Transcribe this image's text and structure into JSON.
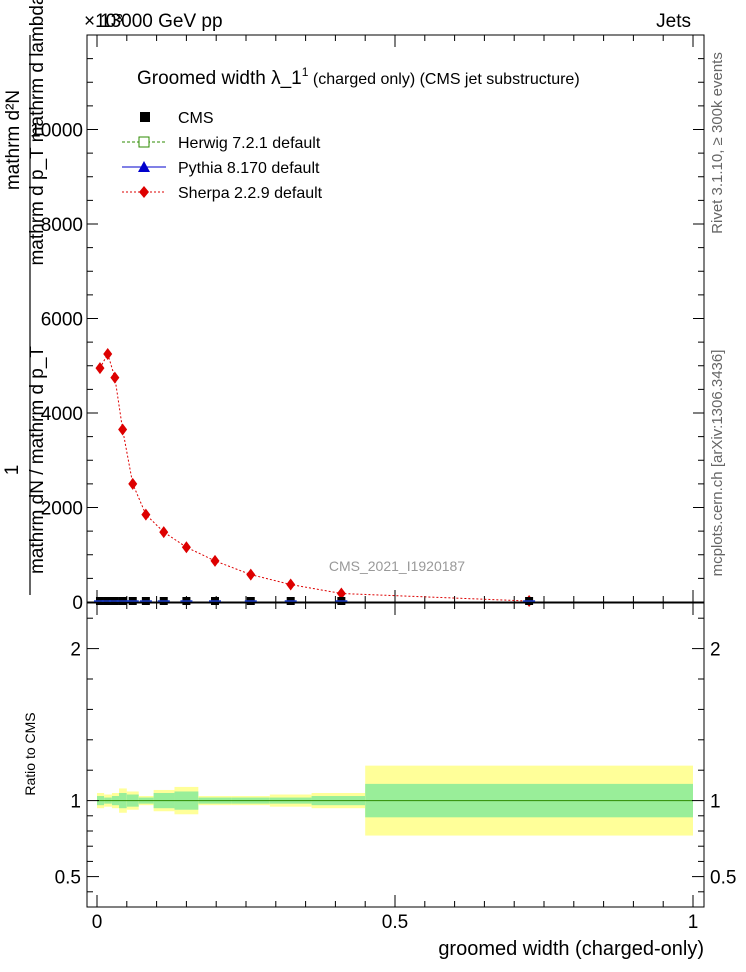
{
  "header": {
    "left": "13000 GeV pp",
    "right": "Jets",
    "exponent": "×10³"
  },
  "title": {
    "main": "Groomed width  λ_1",
    "sup": "1",
    "suffix": " (charged only) (CMS jet substructure)"
  },
  "watermark": "CMS_2021_I1920187",
  "side_labels": {
    "rivet": "Rivet 3.1.10, ≥ 300k events",
    "mcplots": "mcplots.cern.ch [arXiv:1306.3436]"
  },
  "y_label": {
    "one": "1",
    "numerator": "mathrm d²N",
    "denominator_top": "mathrm d p_T mathrm d lambda",
    "denominator_bottom": "mathrm dN / mathrm d p_T"
  },
  "ratio_label": "Ratio to CMS",
  "x_label": "groomed width (charged-only)",
  "legend": [
    {
      "label": "CMS",
      "color": "#000000",
      "marker": "square"
    },
    {
      "label": "Herwig 7.2.1 default",
      "color": "#2e8b00",
      "marker": "open-square"
    },
    {
      "label": "Pythia 8.170 default",
      "color": "#0000cc",
      "marker": "triangle"
    },
    {
      "label": "Sherpa 2.2.9 default",
      "color": "#dd0000",
      "marker": "diamond"
    }
  ],
  "chart_data": {
    "type": "line",
    "xlim": [
      0,
      1
    ],
    "ylim": [
      0,
      12000
    ],
    "x_ticks": [
      {
        "v": 0,
        "label": "0"
      },
      {
        "v": 0.5,
        "label": "0.5"
      },
      {
        "v": 1,
        "label": "1"
      }
    ],
    "y_ticks": [
      {
        "v": 0,
        "label": "0"
      },
      {
        "v": 2000,
        "label": "2000"
      },
      {
        "v": 4000,
        "label": "4000"
      },
      {
        "v": 6000,
        "label": "6000"
      },
      {
        "v": 8000,
        "label": "8000"
      },
      {
        "v": 10000,
        "label": "10000"
      }
    ],
    "series": [
      {
        "name": "Sherpa 2.2.9 default",
        "x": [
          0.005,
          0.018,
          0.03,
          0.043,
          0.06,
          0.082,
          0.112,
          0.15,
          0.198,
          0.258,
          0.325,
          0.41,
          0.725
        ],
        "y": [
          4950,
          5250,
          4750,
          3650,
          2500,
          1850,
          1480,
          1160,
          870,
          580,
          370,
          180,
          20
        ]
      },
      {
        "name": "CMS",
        "x": [
          0.005,
          0.018,
          0.03,
          0.043,
          0.06,
          0.082,
          0.112,
          0.15,
          0.198,
          0.258,
          0.325,
          0.41,
          0.725
        ],
        "y": [
          0,
          0,
          0,
          0,
          0,
          0,
          0,
          0,
          0,
          0,
          0,
          0,
          0
        ]
      }
    ],
    "ratio": {
      "ylim": [
        0.3,
        2.3
      ],
      "y_ticks": [
        {
          "v": 0.5,
          "label": "0.5"
        },
        {
          "v": 1,
          "label": "1"
        },
        {
          "v": 2,
          "label": "2"
        }
      ],
      "bins": [
        0,
        0.012,
        0.025,
        0.037,
        0.05,
        0.07,
        0.095,
        0.13,
        0.17,
        0.225,
        0.29,
        0.36,
        0.45,
        1.0
      ],
      "stat": [
        0.03,
        0.02,
        0.03,
        0.05,
        0.04,
        0.02,
        0.05,
        0.06,
        0.02,
        0.02,
        0.02,
        0.03,
        0.11
      ],
      "total": [
        0.05,
        0.04,
        0.05,
        0.08,
        0.06,
        0.03,
        0.07,
        0.09,
        0.03,
        0.03,
        0.04,
        0.05,
        0.23
      ]
    }
  }
}
